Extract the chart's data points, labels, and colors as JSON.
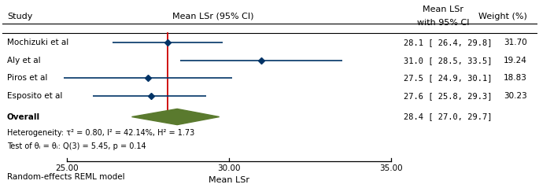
{
  "studies": [
    "Mochizuki et al",
    "Aly et al",
    "Piros et al",
    "Esposito et al"
  ],
  "means": [
    28.1,
    31.0,
    27.5,
    27.6
  ],
  "ci_low": [
    26.4,
    28.5,
    24.9,
    25.8
  ],
  "ci_high": [
    29.8,
    33.5,
    30.1,
    29.3
  ],
  "overall_mean": 28.4,
  "overall_ci_low": 27.0,
  "overall_ci_high": 29.7,
  "ci_labels": [
    "28.1 [ 26.4, 29.8]",
    "31.0 [ 28.5, 33.5]",
    "27.5 [ 24.9, 30.1]",
    "27.6 [ 25.8, 29.3]"
  ],
  "overall_ci_label": "28.4 [ 27.0, 29.7]",
  "weight_labels": [
    "31.70",
    "19.24",
    "18.83",
    "30.23"
  ],
  "xlim": [
    23.0,
    39.5
  ],
  "xticks": [
    25.0,
    30.0,
    35.0
  ],
  "xlabel": "Mean LSr",
  "vline_x": 28.1,
  "col_header1": "Mean LSr (95% CI)",
  "col_header2_line1": "Mean LSr",
  "col_header2_line2": "with 95% CI",
  "col_header3": "Weight (%)",
  "study_col_header": "Study",
  "overall_label": "Overall",
  "heterogeneity_text": "Heterogeneity: τ² = 0.80, I² = 42.14%, H² = 1.73",
  "test_text": "Test of θᵢ = θᵢ: Q(3) = 5.45, p = 0.14",
  "footer_text": "Random-effects REML model",
  "diamond_color": "#5a7a2e",
  "line_color": "#003366",
  "marker_color": "#003366",
  "vline_color": "#cc0000",
  "text_color": "#000000"
}
